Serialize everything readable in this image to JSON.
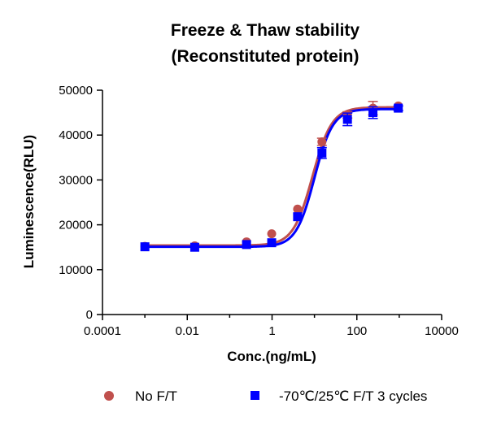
{
  "chart_data": {
    "type": "scatter",
    "title": [
      "Freeze & Thaw stability",
      "(Reconstituted protein)"
    ],
    "xlabel": "Conc.(ng/mL)",
    "ylabel": "Luminescence(RLU)",
    "xscale": "log",
    "xlim": [
      0.0001,
      10000
    ],
    "ylim": [
      0,
      50000
    ],
    "xticks": [
      0.0001,
      0.01,
      1,
      100,
      10000
    ],
    "xtick_labels": [
      "0.0001",
      "0.01",
      "1",
      "100",
      "10000"
    ],
    "yticks": [
      0,
      10000,
      20000,
      30000,
      40000,
      50000
    ],
    "ytick_labels": [
      "0",
      "10000",
      "20000",
      "30000",
      "40000",
      "50000"
    ],
    "grid": false,
    "legend_position": "bottom",
    "series": [
      {
        "name": "No F/T",
        "marker": "circle",
        "color": "#c0504d",
        "x": [
          0.001,
          0.015,
          0.25,
          0.98,
          4.0,
          15.0,
          60.0,
          240.0,
          950.0
        ],
        "y": [
          15200,
          15300,
          16200,
          18000,
          23500,
          38500,
          44500,
          46000,
          46500
        ],
        "err": [
          0,
          0,
          0,
          0,
          0,
          800,
          700,
          1500,
          0
        ],
        "fit": {
          "bottom": 15400,
          "top": 46200,
          "ec50": 9.0,
          "hill": 1.9
        }
      },
      {
        "name": "-70℃/25℃ F/T 3 cycles",
        "marker": "square",
        "color": "#0000ff",
        "x": [
          0.001,
          0.015,
          0.25,
          0.98,
          4.0,
          15.0,
          60.0,
          240.0,
          950.0
        ],
        "y": [
          15100,
          15000,
          15600,
          16000,
          21800,
          36000,
          43500,
          45000,
          46000
        ],
        "err": [
          0,
          0,
          0,
          0,
          0,
          1200,
          1400,
          1300,
          500
        ],
        "fit": {
          "bottom": 15100,
          "top": 45800,
          "ec50": 10.0,
          "hill": 2.0
        }
      }
    ]
  }
}
